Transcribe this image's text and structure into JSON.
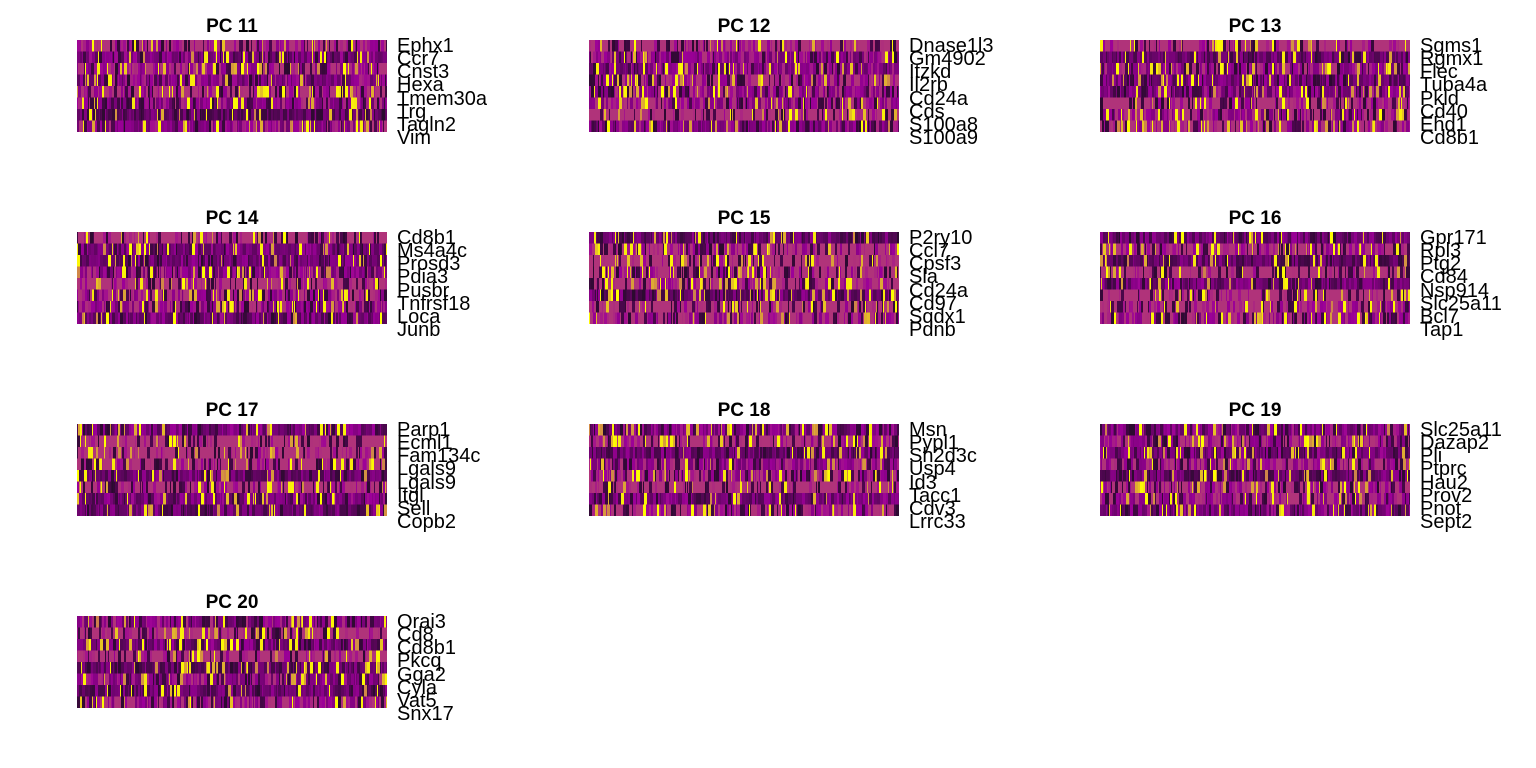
{
  "chart_data": {
    "type": "heatmap",
    "colors": {
      "low": "#2a0a2e",
      "mid": "#9c0098",
      "high": "#ffff00"
    },
    "panels": [
      {
        "title": "PC 11",
        "genes": [
          "Ephx1",
          "Ccr7",
          "Cnst3",
          "Hexa",
          "Tmem30a",
          "Trg",
          "Tagln2",
          "Vim"
        ]
      },
      {
        "title": "PC 12",
        "genes": [
          "Dnase1l3",
          "Gm4902",
          "Itzkd",
          "Il2rb",
          "Cd24a",
          "Cds",
          "S100a8",
          "S100a9"
        ]
      },
      {
        "title": "PC 13",
        "genes": [
          "Sgms1",
          "Rgmx1",
          "Flec",
          "Tuba4a",
          "Pkld",
          "Cd40",
          "Ehd1",
          "Cd8b1"
        ]
      },
      {
        "title": "PC 14",
        "genes": [
          "Cd8b1",
          "Ms4a4c",
          "Prosd3",
          "Pdia3",
          "Pusbr",
          "Tnfrsf18",
          "Loca",
          "Junb"
        ]
      },
      {
        "title": "PC 15",
        "genes": [
          "P2ry10",
          "Ccl7",
          "Cpsf3",
          "Sla",
          "Cd24a",
          "Cd97",
          "Sqdx1",
          "Pdnb"
        ]
      },
      {
        "title": "PC 16",
        "genes": [
          "Gpr171",
          "Rpl3",
          "Ptg2",
          "Cd84",
          "Nsp914",
          "Slc25a11",
          "Bcl7",
          "Tap1"
        ]
      },
      {
        "title": "PC 17",
        "genes": [
          "Parp1",
          "Ecml1",
          "Fam134c",
          "Lgals9",
          "Lgals9",
          "Itgl",
          "Sell",
          "Copb2"
        ]
      },
      {
        "title": "PC 18",
        "genes": [
          "Msn",
          "Pypl1",
          "Sh2d3c",
          "Usp4",
          "Id3",
          "Tacc1",
          "Cdv3",
          "Lrrc33"
        ]
      },
      {
        "title": "PC 19",
        "genes": [
          "Slc25a11",
          "Dazap2",
          "Pli",
          "Ptprc",
          "Hau2",
          "Prov2",
          "Pnot",
          "Sept2"
        ]
      },
      {
        "title": "PC 20",
        "genes": [
          "Orai3",
          "Cd8",
          "Cd8b1",
          "Pkcq",
          "Gga2",
          "Cyla",
          "Vat5",
          "Snx17"
        ]
      }
    ]
  }
}
